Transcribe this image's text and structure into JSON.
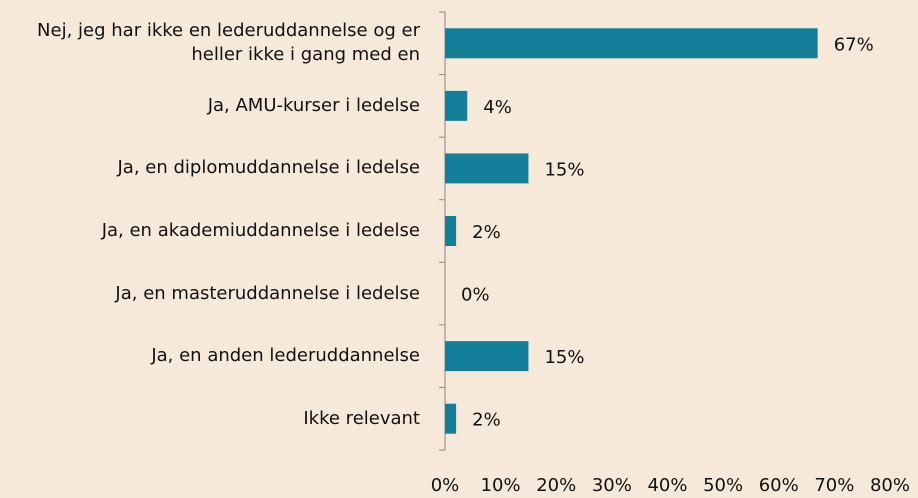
{
  "chart_data": {
    "type": "bar",
    "orientation": "horizontal",
    "categories": [
      "Nej, jeg har ikke en lederuddannelse og er heller ikke i gang med en",
      "Ja, AMU-kurser i ledelse",
      "Ja, en diplomuddannelse i ledelse",
      "Ja, en akademiuddannelse i ledelse",
      "Ja, en masteruddannelse i ledelse",
      "Ja, en anden lederuddannelse",
      "Ikke relevant"
    ],
    "values": [
      67,
      4,
      15,
      2,
      0,
      15,
      2
    ],
    "value_labels": [
      "67%",
      "4%",
      "15%",
      "2%",
      "0%",
      "15%",
      "2%"
    ],
    "color": "#137f99",
    "xlim": [
      0,
      80
    ],
    "xticks": [
      {
        "value": 0,
        "label": "0%"
      },
      {
        "value": 10,
        "label": "10%"
      },
      {
        "value": 20,
        "label": "20%"
      },
      {
        "value": 30,
        "label": "30%"
      },
      {
        "value": 40,
        "label": "40%"
      },
      {
        "value": 50,
        "label": "50%"
      },
      {
        "value": 60,
        "label": "60%"
      },
      {
        "value": 70,
        "label": "70%"
      },
      {
        "value": 80,
        "label": "80%"
      }
    ],
    "grid": false
  }
}
